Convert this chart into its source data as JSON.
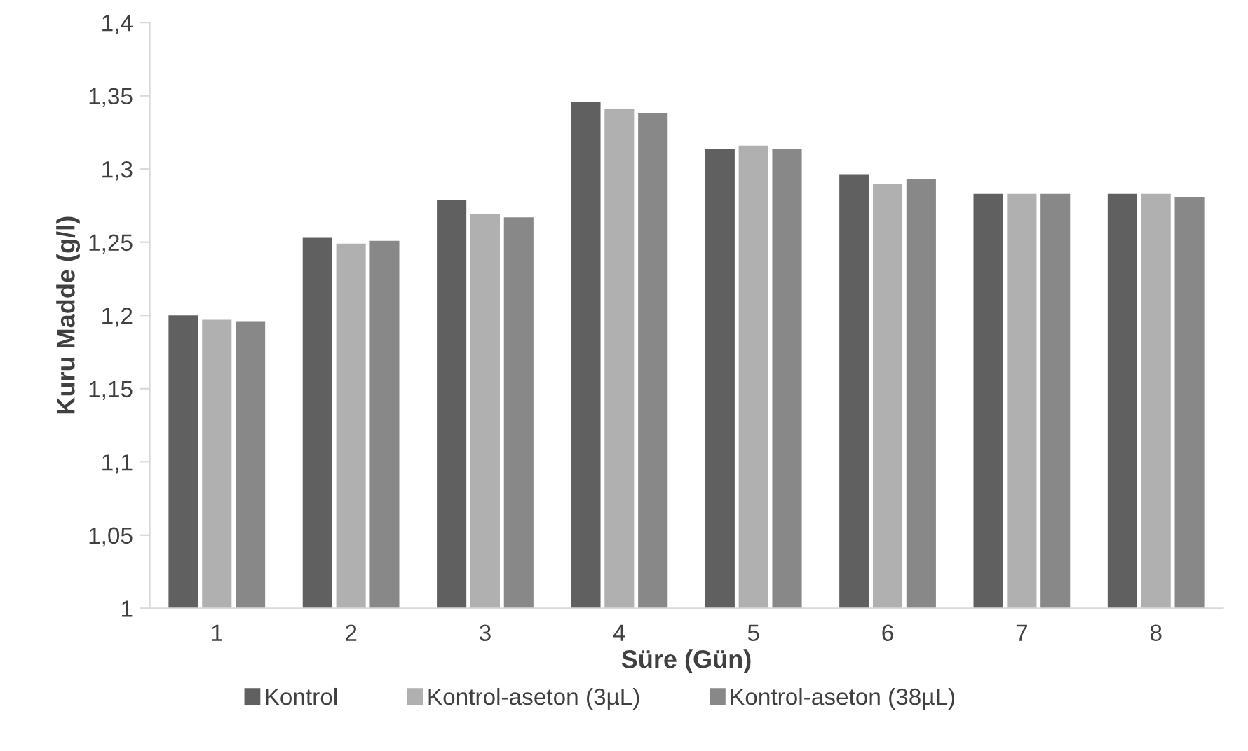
{
  "chart_data": {
    "type": "bar",
    "xlabel": "Süre (Gün)",
    "ylabel": "Kuru Madde (g/l)",
    "categories": [
      "1",
      "2",
      "3",
      "4",
      "5",
      "6",
      "7",
      "8"
    ],
    "series": [
      {
        "name": "Kontrol",
        "color": "#606060",
        "values": [
          1.2,
          1.253,
          1.279,
          1.346,
          1.314,
          1.296,
          1.283,
          1.283
        ]
      },
      {
        "name": "Kontrol-aseton (3µL)",
        "color": "#b0b0b0",
        "values": [
          1.197,
          1.249,
          1.269,
          1.341,
          1.316,
          1.29,
          1.283,
          1.283
        ]
      },
      {
        "name": "Kontrol-aseton (38µL)",
        "color": "#888888",
        "values": [
          1.196,
          1.251,
          1.267,
          1.338,
          1.314,
          1.293,
          1.283,
          1.281
        ]
      }
    ],
    "ylim": [
      1,
      1.4
    ],
    "yticks": [
      {
        "value": 1,
        "label": "1"
      },
      {
        "value": 1.05,
        "label": "1,05"
      },
      {
        "value": 1.1,
        "label": "1,1"
      },
      {
        "value": 1.15,
        "label": "1,15"
      },
      {
        "value": 1.2,
        "label": "1,2"
      },
      {
        "value": 1.25,
        "label": "1,25"
      },
      {
        "value": 1.3,
        "label": "1,3"
      },
      {
        "value": 1.35,
        "label": "1,35"
      },
      {
        "value": 1.4,
        "label": "1,4"
      }
    ],
    "grid": false,
    "legend": "bottom"
  }
}
